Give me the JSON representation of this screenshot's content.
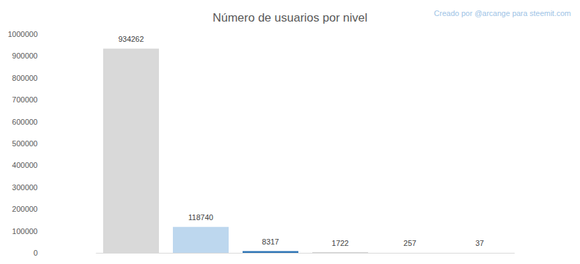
{
  "chart_data": {
    "type": "bar",
    "title": "Número de usuarios por nivel",
    "subtitle": "Creado por @arcange para steemit.com",
    "categories": [
      null,
      null,
      null,
      null,
      null,
      null
    ],
    "values": [
      934262,
      118740,
      8317,
      1722,
      257,
      37
    ],
    "colors": [
      "#d9d9d9",
      "#bdd7ee",
      "#2e75b6",
      "#a5a5a5",
      "#c00000",
      "#7030a0"
    ],
    "ylim": [
      0,
      1000000
    ],
    "yticks": [
      0,
      100000,
      200000,
      300000,
      400000,
      500000,
      600000,
      700000,
      800000,
      900000,
      1000000
    ],
    "grid": false,
    "data_labels": true,
    "tick_labels": "y"
  }
}
